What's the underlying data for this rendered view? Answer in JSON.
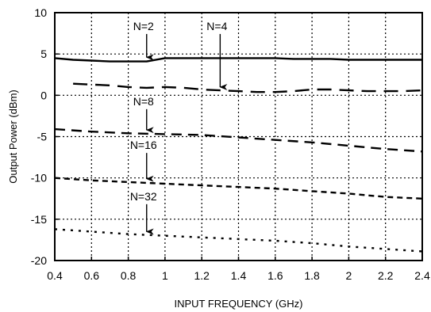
{
  "chart_data": {
    "type": "line",
    "xlabel": "INPUT FREQUENCY (GHz)",
    "ylabel": "Output Power (dBm)",
    "xlim": [
      0.4,
      2.4
    ],
    "ylim": [
      -20,
      10
    ],
    "xticks": [
      0.4,
      0.6,
      0.8,
      1.0,
      1.2,
      1.4,
      1.6,
      1.8,
      2.0,
      2.2,
      2.4
    ],
    "xtick_labels": [
      "0.4",
      "0.6",
      "0.8",
      "1",
      "1.2",
      "1.4",
      "1.6",
      "1.8",
      "2",
      "2.2",
      "2.4"
    ],
    "yticks": [
      -20,
      -15,
      -10,
      -5,
      0,
      5,
      10
    ],
    "ytick_labels": [
      "-20",
      "-15",
      "-10",
      "-5",
      "0",
      "5",
      "10"
    ],
    "grid": "dotted",
    "series": [
      {
        "name": "N=2",
        "style": "solid",
        "x": [
          0.4,
          0.5,
          0.6,
          0.7,
          0.8,
          0.9,
          1.0,
          1.1,
          1.2,
          1.3,
          1.4,
          1.5,
          1.6,
          1.7,
          1.8,
          1.9,
          2.0,
          2.1,
          2.2,
          2.3,
          2.4
        ],
        "y": [
          4.5,
          4.3,
          4.2,
          4.1,
          4.1,
          4.1,
          4.5,
          4.5,
          4.5,
          4.5,
          4.5,
          4.5,
          4.5,
          4.4,
          4.4,
          4.4,
          4.3,
          4.3,
          4.3,
          4.3,
          4.3
        ]
      },
      {
        "name": "N=4",
        "style": "longdash",
        "x": [
          0.5,
          0.6,
          0.7,
          0.8,
          0.9,
          1.0,
          1.1,
          1.2,
          1.3,
          1.4,
          1.5,
          1.6,
          1.7,
          1.8,
          1.9,
          2.0,
          2.1,
          2.2,
          2.3,
          2.4
        ],
        "y": [
          1.4,
          1.3,
          1.2,
          1.0,
          0.9,
          1.0,
          0.9,
          0.7,
          0.6,
          0.5,
          0.4,
          0.4,
          0.5,
          0.7,
          0.7,
          0.6,
          0.5,
          0.5,
          0.5,
          0.6
        ]
      },
      {
        "name": "N=8",
        "style": "dash",
        "x": [
          0.4,
          0.6,
          0.8,
          1.0,
          1.2,
          1.4,
          1.6,
          1.8,
          2.0,
          2.2,
          2.4
        ],
        "y": [
          -4.1,
          -4.4,
          -4.6,
          -4.7,
          -4.8,
          -5.1,
          -5.4,
          -5.7,
          -6.1,
          -6.5,
          -6.8
        ]
      },
      {
        "name": "N=16",
        "style": "shortdash",
        "x": [
          0.4,
          0.6,
          0.8,
          1.0,
          1.2,
          1.4,
          1.6,
          1.8,
          2.0,
          2.2,
          2.4
        ],
        "y": [
          -10.0,
          -10.3,
          -10.5,
          -10.7,
          -10.9,
          -11.1,
          -11.3,
          -11.6,
          -11.9,
          -12.3,
          -12.5
        ]
      },
      {
        "name": "N=32",
        "style": "dotted",
        "x": [
          0.4,
          0.6,
          0.8,
          1.0,
          1.2,
          1.4,
          1.6,
          1.8,
          2.0,
          2.2,
          2.4
        ],
        "y": [
          -16.2,
          -16.5,
          -16.8,
          -17.0,
          -17.2,
          -17.4,
          -17.6,
          -17.9,
          -18.3,
          -18.6,
          -18.9
        ]
      }
    ],
    "annotations": [
      {
        "text": "N=2",
        "series": "N=2",
        "at_x": 0.9,
        "at_y": 4.5,
        "label_y": 7.9
      },
      {
        "text": "N=4",
        "series": "N=4",
        "at_x": 1.3,
        "at_y": 0.9,
        "label_y": 7.9
      },
      {
        "text": "N=8",
        "series": "N=8",
        "at_x": 0.9,
        "at_y": -4.3,
        "label_y": -1.2
      },
      {
        "text": "N=16",
        "series": "N=16",
        "at_x": 0.9,
        "at_y": -10.2,
        "label_y": -6.5
      },
      {
        "text": "N=32",
        "series": "N=32",
        "at_x": 0.9,
        "at_y": -16.6,
        "label_y": -12.7
      }
    ]
  }
}
